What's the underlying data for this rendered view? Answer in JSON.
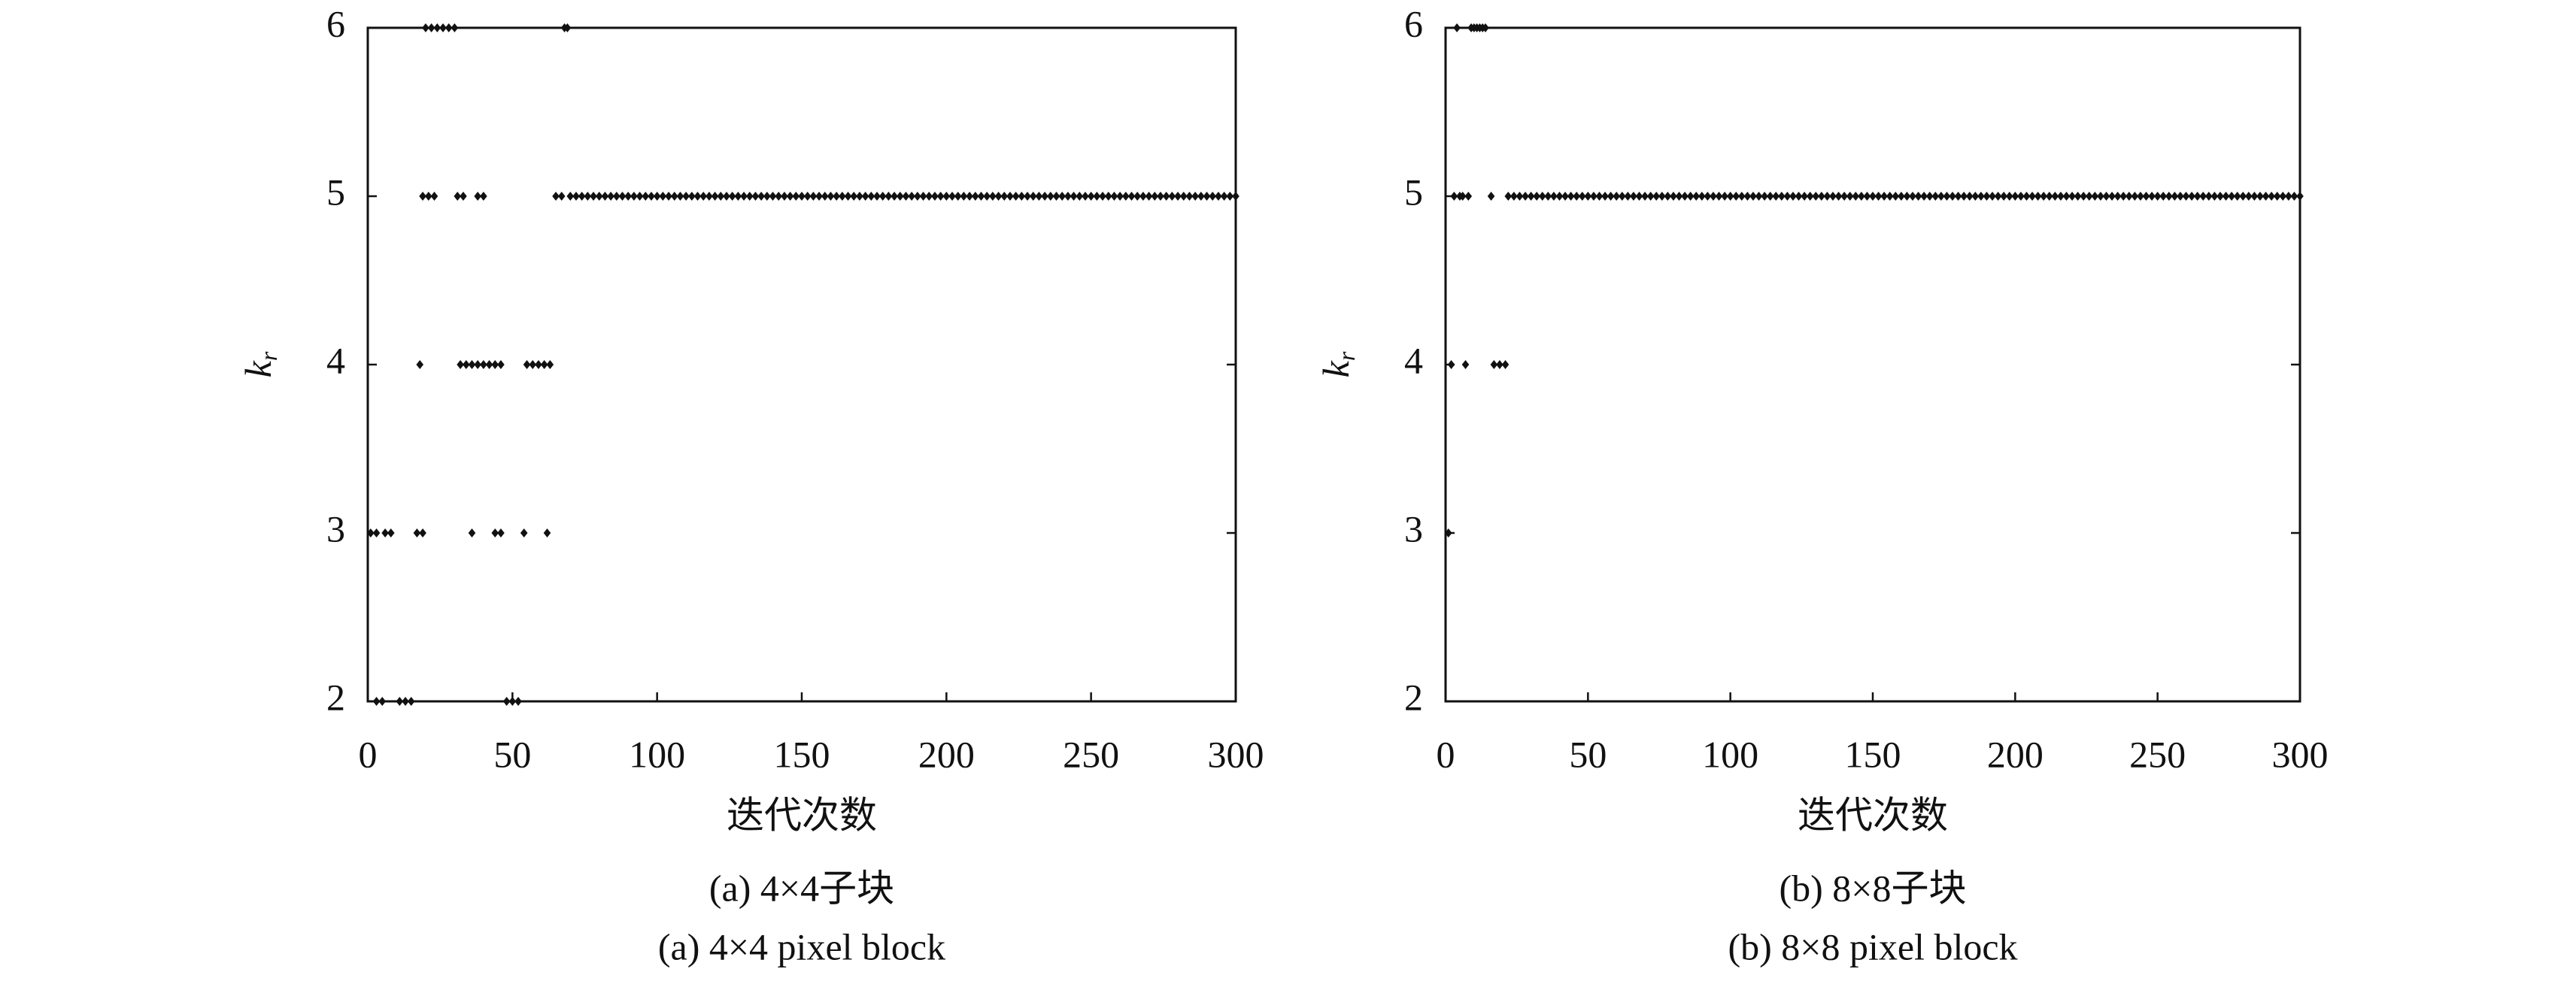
{
  "chart_data": [
    {
      "type": "scatter",
      "color": "#111111",
      "marker": "diamond",
      "xlim": [
        0,
        300
      ],
      "xticks": [
        0,
        50,
        100,
        150,
        200,
        250,
        300
      ],
      "ylim": [
        2,
        6
      ],
      "yticks": [
        2,
        3,
        4,
        5,
        6
      ],
      "x_label": "迭代次数",
      "y_label": [
        "k",
        "r"
      ],
      "captions": [
        "(a) 4×4子块",
        "(a) 4×4 pixel block"
      ],
      "x": [
        1,
        3,
        6,
        8,
        17,
        19,
        36,
        44,
        46,
        54,
        62,
        3,
        5,
        11,
        13,
        15,
        48,
        50,
        52,
        18,
        32,
        34,
        36,
        38,
        40,
        42,
        44,
        46,
        55,
        57,
        59,
        61,
        63,
        19,
        21,
        23,
        31,
        33,
        38,
        40,
        65,
        67,
        20,
        22,
        24,
        26,
        28,
        30,
        68,
        69,
        70,
        72,
        74,
        76,
        78,
        80,
        82,
        84,
        86,
        88,
        90,
        92,
        94,
        96,
        98,
        100,
        102,
        104,
        106,
        108,
        110,
        112,
        114,
        116,
        118,
        120,
        122,
        124,
        126,
        128,
        130,
        132,
        134,
        136,
        138,
        140,
        142,
        144,
        146,
        148,
        150,
        152,
        154,
        156,
        158,
        160,
        162,
        164,
        166,
        168,
        170,
        172,
        174,
        176,
        178,
        180,
        182,
        184,
        186,
        188,
        190,
        192,
        194,
        196,
        198,
        200,
        202,
        204,
        206,
        208,
        210,
        212,
        214,
        216,
        218,
        220,
        222,
        224,
        226,
        228,
        230,
        232,
        234,
        236,
        238,
        240,
        242,
        244,
        246,
        248,
        250,
        252,
        254,
        256,
        258,
        260,
        262,
        264,
        266,
        268,
        270,
        272,
        274,
        276,
        278,
        280,
        282,
        284,
        286,
        288,
        290,
        292,
        294,
        296,
        298,
        300
      ],
      "values": [
        3,
        3,
        3,
        3,
        3,
        3,
        3,
        3,
        3,
        3,
        3,
        2,
        2,
        2,
        2,
        2,
        2,
        2,
        2,
        4,
        4,
        4,
        4,
        4,
        4,
        4,
        4,
        4,
        4,
        4,
        4,
        4,
        4,
        5,
        5,
        5,
        5,
        5,
        5,
        5,
        5,
        5,
        6,
        6,
        6,
        6,
        6,
        6,
        6,
        6,
        5,
        5,
        5,
        5,
        5,
        5,
        5,
        5,
        5,
        5,
        5,
        5,
        5,
        5,
        5,
        5,
        5,
        5,
        5,
        5,
        5,
        5,
        5,
        5,
        5,
        5,
        5,
        5,
        5,
        5,
        5,
        5,
        5,
        5,
        5,
        5,
        5,
        5,
        5,
        5,
        5,
        5,
        5,
        5,
        5,
        5,
        5,
        5,
        5,
        5,
        5,
        5,
        5,
        5,
        5,
        5,
        5,
        5,
        5,
        5,
        5,
        5,
        5,
        5,
        5,
        5,
        5,
        5,
        5,
        5,
        5,
        5,
        5,
        5,
        5,
        5,
        5,
        5,
        5,
        5,
        5,
        5,
        5,
        5,
        5,
        5,
        5,
        5,
        5,
        5,
        5,
        5,
        5,
        5,
        5,
        5,
        5,
        5,
        5,
        5,
        5,
        5,
        5,
        5,
        5,
        5,
        5,
        5,
        5,
        5,
        5,
        5,
        5,
        5,
        5,
        5
      ]
    },
    {
      "type": "scatter",
      "color": "#111111",
      "marker": "diamond",
      "xlim": [
        0,
        300
      ],
      "xticks": [
        0,
        50,
        100,
        150,
        200,
        250,
        300
      ],
      "ylim": [
        2,
        6
      ],
      "yticks": [
        2,
        3,
        4,
        5,
        6
      ],
      "x_label": "迭代次数",
      "y_label": [
        "k",
        "r"
      ],
      "captions": [
        "(b) 8×8子块",
        "(b) 8×8 pixel block"
      ],
      "x": [
        1,
        2,
        7,
        17,
        19,
        21,
        4,
        9,
        10,
        11,
        12,
        13,
        14,
        3,
        5,
        6,
        8,
        16,
        22,
        24,
        26,
        28,
        30,
        32,
        34,
        36,
        38,
        40,
        42,
        44,
        46,
        48,
        50,
        52,
        54,
        56,
        58,
        60,
        62,
        64,
        66,
        68,
        70,
        72,
        74,
        76,
        78,
        80,
        82,
        84,
        86,
        88,
        90,
        92,
        94,
        96,
        98,
        100,
        102,
        104,
        106,
        108,
        110,
        112,
        114,
        116,
        118,
        120,
        122,
        124,
        126,
        128,
        130,
        132,
        134,
        136,
        138,
        140,
        142,
        144,
        146,
        148,
        150,
        152,
        154,
        156,
        158,
        160,
        162,
        164,
        166,
        168,
        170,
        172,
        174,
        176,
        178,
        180,
        182,
        184,
        186,
        188,
        190,
        192,
        194,
        196,
        198,
        200,
        202,
        204,
        206,
        208,
        210,
        212,
        214,
        216,
        218,
        220,
        222,
        224,
        226,
        228,
        230,
        232,
        234,
        236,
        238,
        240,
        242,
        244,
        246,
        248,
        250,
        252,
        254,
        256,
        258,
        260,
        262,
        264,
        266,
        268,
        270,
        272,
        274,
        276,
        278,
        280,
        282,
        284,
        286,
        288,
        290,
        292,
        294,
        296,
        298,
        300
      ],
      "values": [
        3,
        4,
        4,
        4,
        4,
        4,
        6,
        6,
        6,
        6,
        6,
        6,
        6,
        5,
        5,
        5,
        5,
        5,
        5,
        5,
        5,
        5,
        5,
        5,
        5,
        5,
        5,
        5,
        5,
        5,
        5,
        5,
        5,
        5,
        5,
        5,
        5,
        5,
        5,
        5,
        5,
        5,
        5,
        5,
        5,
        5,
        5,
        5,
        5,
        5,
        5,
        5,
        5,
        5,
        5,
        5,
        5,
        5,
        5,
        5,
        5,
        5,
        5,
        5,
        5,
        5,
        5,
        5,
        5,
        5,
        5,
        5,
        5,
        5,
        5,
        5,
        5,
        5,
        5,
        5,
        5,
        5,
        5,
        5,
        5,
        5,
        5,
        5,
        5,
        5,
        5,
        5,
        5,
        5,
        5,
        5,
        5,
        5,
        5,
        5,
        5,
        5,
        5,
        5,
        5,
        5,
        5,
        5,
        5,
        5,
        5,
        5,
        5,
        5,
        5,
        5,
        5,
        5,
        5,
        5,
        5,
        5,
        5,
        5,
        5,
        5,
        5,
        5,
        5,
        5,
        5,
        5,
        5,
        5,
        5,
        5,
        5,
        5,
        5,
        5,
        5,
        5,
        5,
        5,
        5,
        5,
        5,
        5,
        5,
        5,
        5,
        5,
        5,
        5,
        5,
        5,
        5,
        5
      ]
    }
  ]
}
